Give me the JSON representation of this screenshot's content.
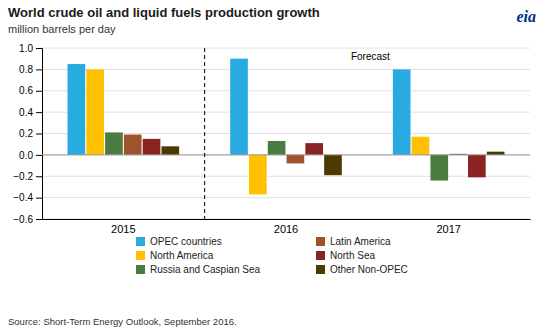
{
  "chart_data": {
    "type": "bar",
    "title": "World crude oil and liquid fuels production growth",
    "subtitle": "million barrels per day",
    "source": "Source: Short-Term Energy Outlook, September 2016.",
    "annotations": [
      "Forecast",
      "eia"
    ],
    "categories": [
      "2015",
      "2016",
      "2017"
    ],
    "series": [
      {
        "name": "OPEC countries",
        "color": "#29ABE2",
        "values": [
          0.85,
          0.9,
          0.8
        ]
      },
      {
        "name": "North America",
        "color": "#FFC000",
        "values": [
          0.8,
          -0.37,
          0.17
        ]
      },
      {
        "name": "Russia and Caspian Sea",
        "color": "#4A7C3F",
        "values": [
          0.21,
          0.13,
          -0.24
        ]
      },
      {
        "name": "Latin America",
        "color": "#A0522D",
        "values": [
          0.19,
          -0.08,
          0.01
        ]
      },
      {
        "name": "North Sea",
        "color": "#8B2323",
        "values": [
          0.15,
          0.11,
          -0.21
        ]
      },
      {
        "name": "Other Non-OPEC",
        "color": "#4B3B00",
        "values": [
          0.08,
          -0.19,
          0.03
        ]
      }
    ],
    "ylim": [
      -0.6,
      1.0
    ],
    "yticks": [
      {
        "value": -0.6,
        "label": "−0.6"
      },
      {
        "value": -0.4,
        "label": "−0.4"
      },
      {
        "value": -0.2,
        "label": "−0.2"
      },
      {
        "value": 0.0,
        "label": "0.0"
      },
      0.2,
      0.4,
      0.6,
      0.8,
      {
        "value": 1.0,
        "label": "1.0"
      }
    ],
    "grid": true,
    "legend": "bottom"
  }
}
